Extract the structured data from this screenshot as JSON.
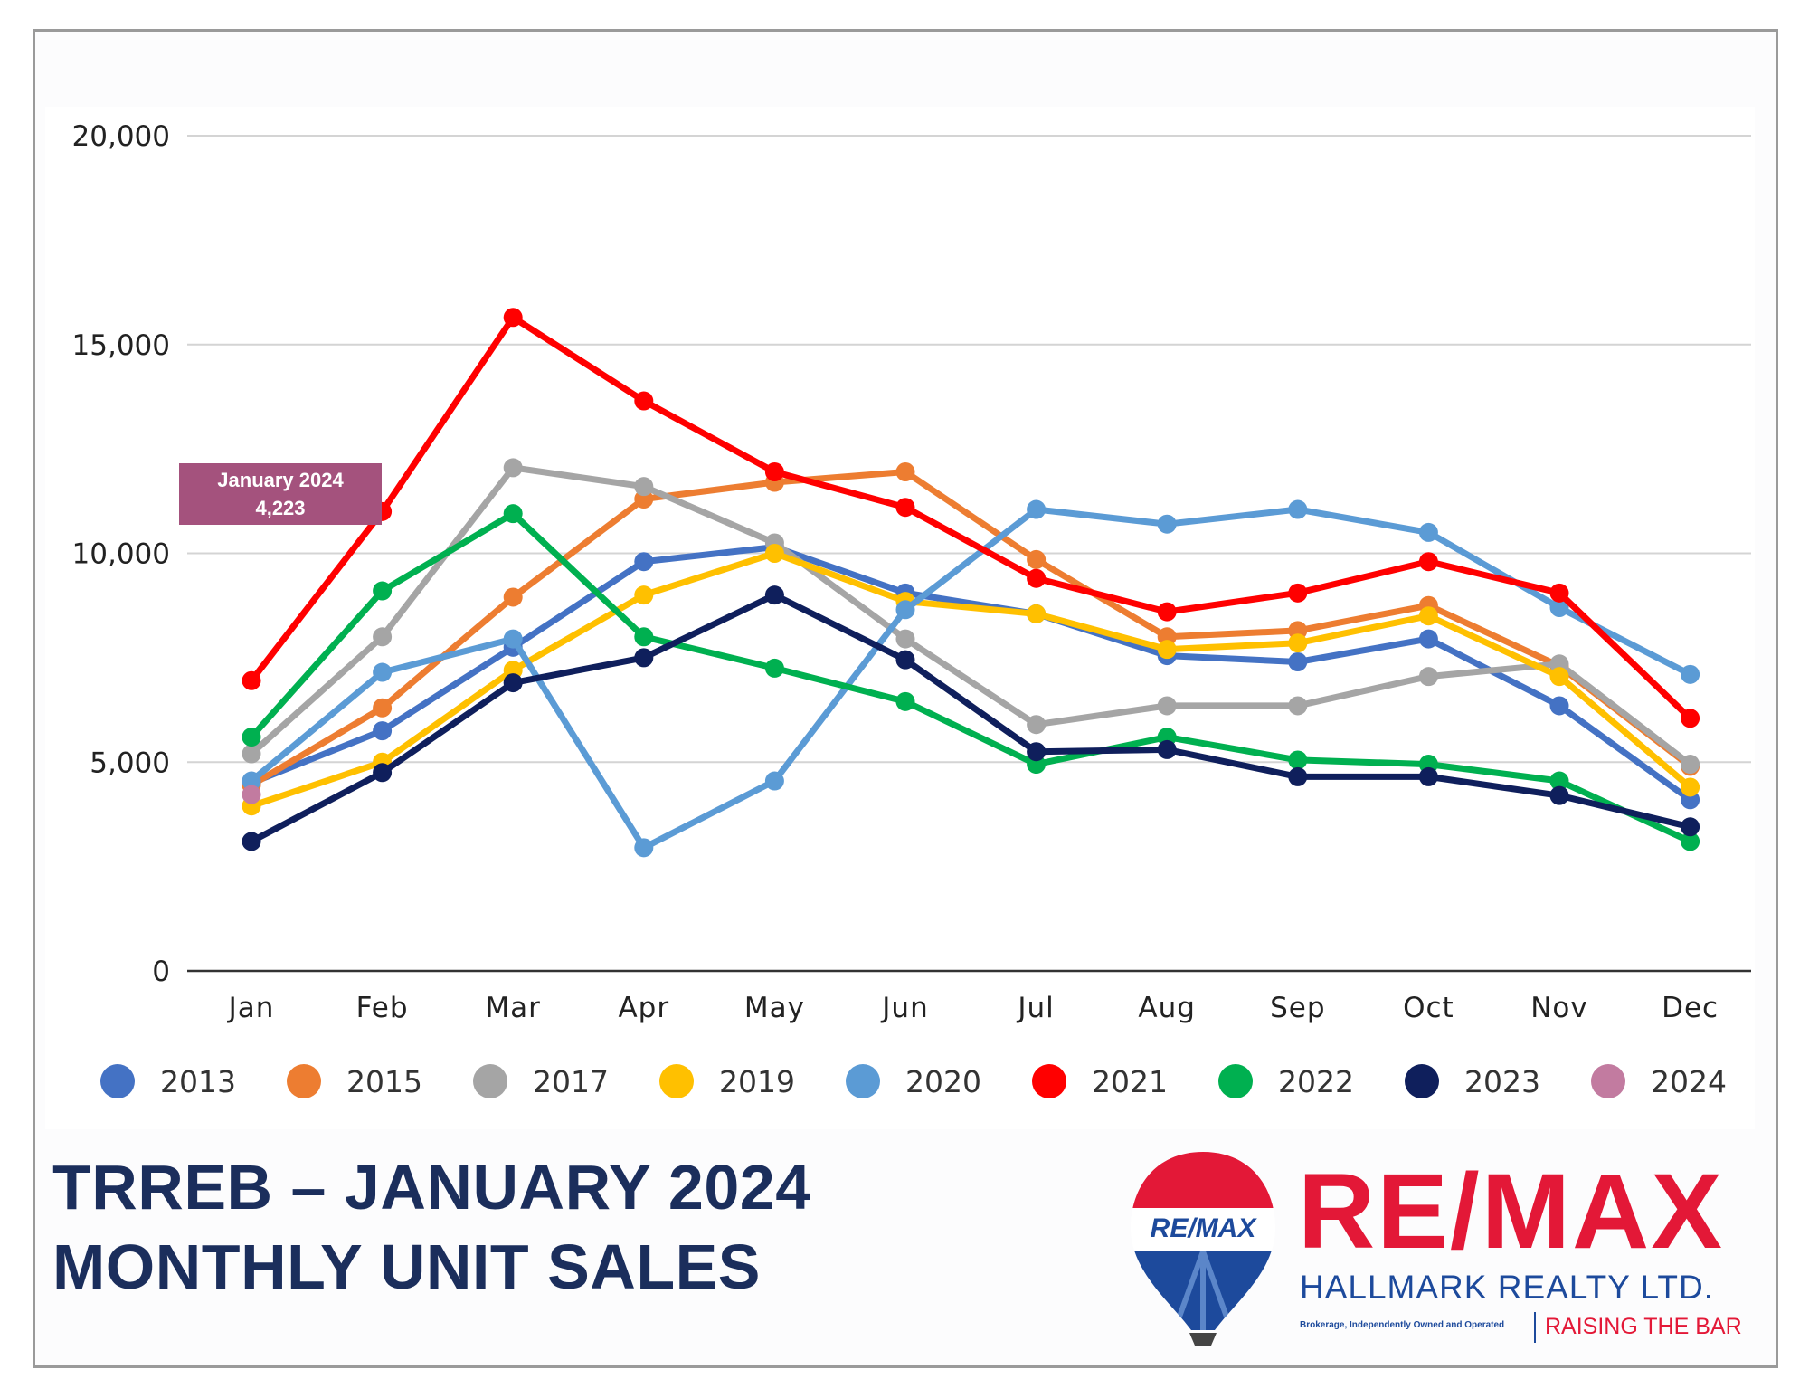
{
  "chart_data": {
    "type": "line",
    "categories": [
      "Jan",
      "Feb",
      "Mar",
      "Apr",
      "May",
      "Jun",
      "Jul",
      "Aug",
      "Sep",
      "Oct",
      "Nov",
      "Dec"
    ],
    "ylim": [
      0,
      20000
    ],
    "yticks": [
      0,
      5000,
      10000,
      15000,
      20000
    ],
    "ytick_labels": [
      "0",
      "5,000",
      "10,000",
      "15,000",
      "20,000"
    ],
    "grid": true,
    "legend_position": "bottom",
    "series": [
      {
        "name": "2013",
        "color": "#4472c4",
        "values": [
          4500,
          5750,
          7750,
          9800,
          10150,
          9050,
          8550,
          7550,
          7400,
          7950,
          6350,
          4100
        ]
      },
      {
        "name": "2015",
        "color": "#ed7d31",
        "values": [
          4450,
          6300,
          8950,
          11300,
          11700,
          11950,
          9850,
          8000,
          8150,
          8750,
          7300,
          4900
        ]
      },
      {
        "name": "2017",
        "color": "#a5a5a5",
        "values": [
          5200,
          8000,
          12050,
          11600,
          10250,
          7950,
          5900,
          6350,
          6350,
          7050,
          7350,
          4950
        ]
      },
      {
        "name": "2019",
        "color": "#ffc000",
        "values": [
          3950,
          5000,
          7200,
          9000,
          10000,
          8850,
          8550,
          7700,
          7850,
          8500,
          7050,
          4400
        ]
      },
      {
        "name": "2020",
        "color": "#5b9bd5",
        "values": [
          4550,
          7150,
          7950,
          2950,
          4550,
          8650,
          11050,
          10700,
          11050,
          10500,
          8700,
          7100
        ]
      },
      {
        "name": "2021",
        "color": "#ff0000",
        "values": [
          6950,
          11000,
          15650,
          13650,
          11950,
          11100,
          9400,
          8600,
          9050,
          9800,
          9050,
          6050
        ]
      },
      {
        "name": "2022",
        "color": "#00b050",
        "values": [
          5600,
          9100,
          10950,
          8000,
          7250,
          6450,
          4950,
          5600,
          5050,
          4950,
          4550,
          3100
        ]
      },
      {
        "name": "2023",
        "color": "#0f1f5c",
        "values": [
          3100,
          4750,
          6900,
          7500,
          9000,
          7450,
          5250,
          5300,
          4650,
          4650,
          4200,
          3450
        ]
      },
      {
        "name": "2024",
        "color": "#c27ba0",
        "values": [
          4223,
          null,
          null,
          null,
          null,
          null,
          null,
          null,
          null,
          null,
          null,
          null
        ]
      }
    ],
    "annotation": {
      "line1": "January 2024",
      "line2": "4,223"
    }
  },
  "footer": {
    "title_line1": "TRREB – JANUARY 2024",
    "title_line2": "MONTHLY UNIT SALES"
  },
  "logo": {
    "balloon_text": "RE/MAX",
    "brand_name": "RE/MAX",
    "subtitle": "HALLMARK REALTY LTD.",
    "note": "Brokerage, Independently Owned and Operated",
    "tagline": "RAISING THE BAR",
    "colors": {
      "red": "#e31837",
      "blue": "#1d4a9c"
    }
  }
}
